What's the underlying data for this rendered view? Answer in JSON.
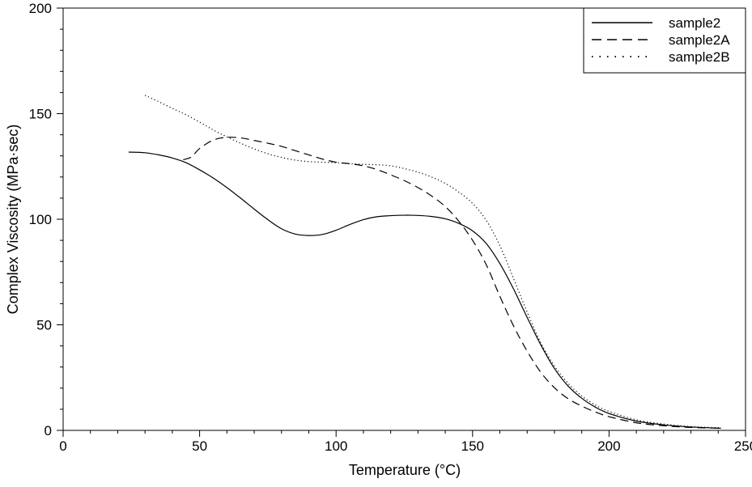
{
  "chart_data": {
    "type": "line",
    "xlabel": "Temperature (°C)",
    "ylabel": "Complex Viscosity (MPa·sec)",
    "xlim": [
      0,
      250
    ],
    "ylim": [
      0,
      200
    ],
    "x_ticks": [
      0,
      50,
      100,
      150,
      200,
      250
    ],
    "y_ticks": [
      0,
      50,
      100,
      150,
      200
    ],
    "x_tick_labels": [
      "0",
      "50",
      "100",
      "150",
      "200",
      "250"
    ],
    "y_tick_labels": [
      "0",
      "50",
      "100",
      "150",
      "200"
    ],
    "grid": false,
    "legend_position": "top-right",
    "series": [
      {
        "name": "sample2",
        "style": "solid",
        "color": "#000000",
        "x": [
          24,
          30,
          35,
          40,
          45,
          50,
          55,
          60,
          65,
          70,
          75,
          80,
          85,
          90,
          95,
          100,
          105,
          110,
          115,
          120,
          125,
          130,
          135,
          140,
          145,
          150,
          155,
          160,
          165,
          170,
          175,
          180,
          185,
          190,
          195,
          200,
          210,
          220,
          230,
          241
        ],
        "y": [
          131.8,
          131.5,
          130.5,
          129,
          126.8,
          123.4,
          119.5,
          115,
          110,
          104.8,
          99.8,
          95.5,
          93,
          92.3,
          92.8,
          94.8,
          97.5,
          99.8,
          101.2,
          101.7,
          101.9,
          101.8,
          101.3,
          100.2,
          98,
          94.5,
          88.5,
          79,
          67,
          53.5,
          40.5,
          29.3,
          21,
          15.2,
          11,
          8,
          4.4,
          2.6,
          1.6,
          1
        ]
      },
      {
        "name": "sample2A",
        "style": "dashed",
        "color": "#000000",
        "x": [
          44,
          47,
          50,
          55,
          60,
          65,
          70,
          75,
          80,
          85,
          90,
          95,
          100,
          105,
          110,
          115,
          120,
          125,
          130,
          135,
          140,
          145,
          150,
          155,
          160,
          165,
          170,
          175,
          180,
          185,
          190,
          195,
          200,
          210,
          220,
          230,
          241
        ],
        "y": [
          128.2,
          129.5,
          133.5,
          137.5,
          138.8,
          138.5,
          137.3,
          136,
          134.5,
          132.5,
          130.5,
          128.5,
          127,
          126.3,
          125.3,
          123.5,
          121,
          118.3,
          115,
          111,
          106,
          99,
          90,
          78.5,
          63.5,
          49.5,
          37.5,
          27.5,
          20.2,
          15,
          11.5,
          8.7,
          6.5,
          3.6,
          2.2,
          1.4,
          1
        ]
      },
      {
        "name": "sample2B",
        "style": "dotted",
        "color": "#000000",
        "x": [
          30,
          35,
          40,
          45,
          50,
          55,
          60,
          65,
          70,
          75,
          80,
          85,
          90,
          95,
          100,
          105,
          110,
          115,
          120,
          125,
          130,
          135,
          140,
          145,
          150,
          155,
          160,
          165,
          170,
          175,
          180,
          185,
          190,
          195,
          200,
          210,
          220,
          230,
          241
        ],
        "y": [
          158.7,
          155.7,
          152.5,
          149.5,
          146,
          142.3,
          139,
          136,
          133.3,
          131,
          129.3,
          128,
          127.3,
          127,
          126.8,
          126.3,
          126,
          125.8,
          125.3,
          124,
          122.3,
          120,
          117,
          112.8,
          107.5,
          99.5,
          87.5,
          72,
          56,
          41.5,
          30.5,
          22.3,
          16.3,
          12,
          9,
          5,
          3,
          1.8,
          1.2
        ]
      }
    ]
  }
}
